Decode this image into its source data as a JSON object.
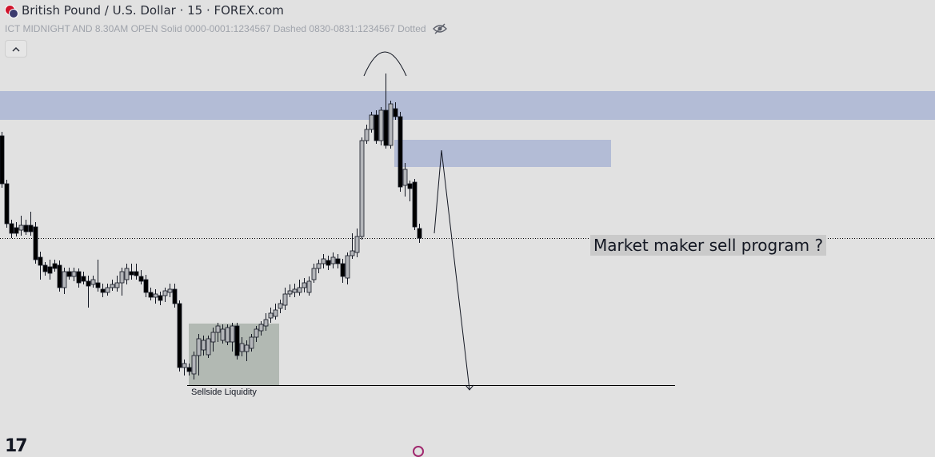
{
  "header": {
    "symbol_title": "British Pound / U.S. Dollar · 15 · FOREX.com"
  },
  "indicator": {
    "label": "ICT MIDNIGHT AND 8.30AM OPEN Solid 0000-0001:1234567 Dashed 0830-0831:1234567 Dotted",
    "icon": "eye-crossed-icon"
  },
  "controls": {
    "collapse_icon": "chevron-up-icon"
  },
  "annotations": {
    "sell_program": "Market maker sell program ?",
    "sellside_liquidity": "Sellside Liquidity"
  },
  "logo": {
    "text": "17"
  },
  "colors": {
    "background": "#e1e1e1",
    "bull_body": "#b4b6ba",
    "bear_body": "#000000",
    "supply_zone": "#b3bcd6",
    "liquidity_box": "#b2b9b3"
  }
}
